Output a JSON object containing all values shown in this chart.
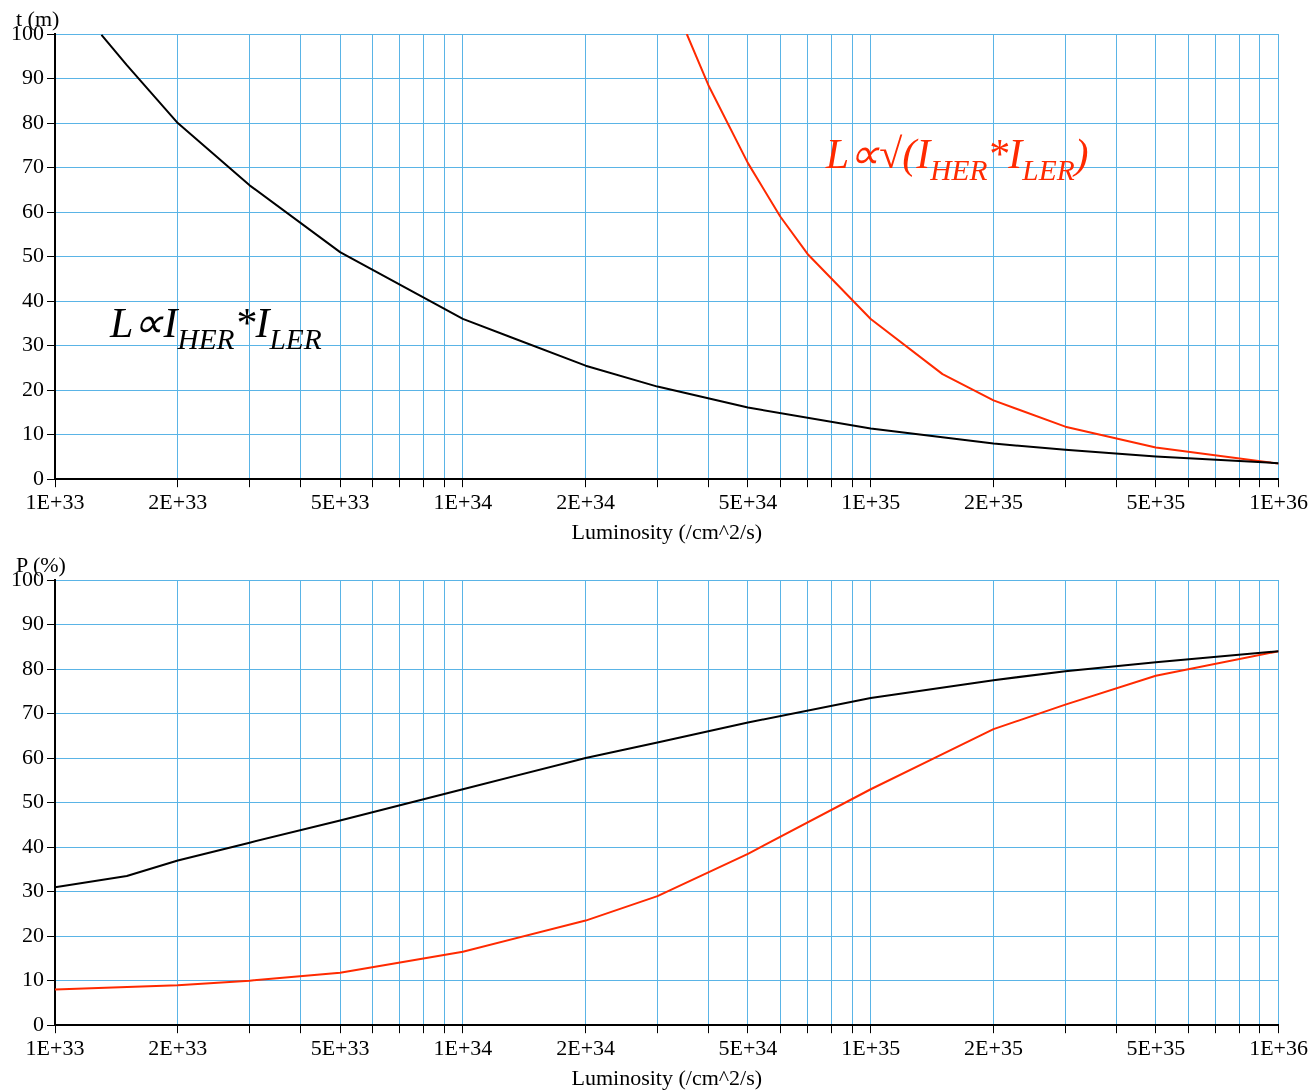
{
  "chart_data": [
    {
      "type": "line",
      "xlabel": "Luminosity (/cm^2/s)",
      "ylabel": "t (m)",
      "log": "x",
      "grid": true,
      "line_style": "solid",
      "xlim": [
        1e+33,
        1e+36
      ],
      "ylim": [
        0,
        100
      ],
      "xticks": [
        {
          "value": 1e+33,
          "label": "1E+33"
        },
        {
          "value": 2e+33,
          "label": "2E+33"
        },
        {
          "value": 3e+33,
          "label": null
        },
        {
          "value": 4e+33,
          "label": null
        },
        {
          "value": 5e+33,
          "label": "5E+33"
        },
        {
          "value": 6e+33,
          "label": null
        },
        {
          "value": 7e+33,
          "label": null
        },
        {
          "value": 8e+33,
          "label": null
        },
        {
          "value": 9e+33,
          "label": null
        },
        {
          "value": 1e+34,
          "label": "1E+34"
        },
        {
          "value": 2e+34,
          "label": "2E+34"
        },
        {
          "value": 3e+34,
          "label": null
        },
        {
          "value": 4e+34,
          "label": null
        },
        {
          "value": 5e+34,
          "label": "5E+34"
        },
        {
          "value": 6e+34,
          "label": null
        },
        {
          "value": 7e+34,
          "label": null
        },
        {
          "value": 8e+34,
          "label": null
        },
        {
          "value": 9e+34,
          "label": null
        },
        {
          "value": 1e+35,
          "label": "1E+35"
        },
        {
          "value": 2e+35,
          "label": "2E+35"
        },
        {
          "value": 3e+35,
          "label": null
        },
        {
          "value": 4e+35,
          "label": null
        },
        {
          "value": 5e+35,
          "label": "5E+35"
        },
        {
          "value": 6e+35,
          "label": null
        },
        {
          "value": 7e+35,
          "label": null
        },
        {
          "value": 8e+35,
          "label": null
        },
        {
          "value": 9e+35,
          "label": null
        },
        {
          "value": 1e+36,
          "label": "1E+36"
        }
      ],
      "yticks": [
        0,
        10,
        20,
        30,
        40,
        50,
        60,
        70,
        80,
        90,
        100
      ],
      "series": [
        {
          "name": "L∝I$_{HER}$*I$_{LER}$",
          "color": "#000000",
          "x": [
            1.3e+33,
            1.5e+33,
            2e+33,
            3e+33,
            5e+33,
            1e+34,
            2e+34,
            3e+34,
            5e+34,
            1e+35,
            2e+35,
            3e+35,
            5e+35,
            1e+36
          ],
          "values": [
            99.8,
            93,
            80,
            66,
            51,
            36,
            25.5,
            20.8,
            16.1,
            11.4,
            8,
            6.6,
            5.1,
            3.6
          ]
        },
        {
          "name": "L∝√(I$_{HER}$*I$_{LER}$)",
          "color": "#ff2a00",
          "x": [
            3.54e+34,
            4e+34,
            5e+34,
            6e+34,
            7e+34,
            1e+35,
            1.5e+35,
            2e+35,
            3e+35,
            5e+35,
            1e+36
          ],
          "values": [
            100,
            88.5,
            71,
            59,
            50.6,
            36,
            23.6,
            17.7,
            11.8,
            7.1,
            3.5
          ]
        }
      ]
    },
    {
      "type": "line",
      "xlabel": "Luminosity (/cm^2/s)",
      "ylabel": "P (%)",
      "log": "x",
      "grid": true,
      "line_style": "solid",
      "xlim": [
        1e+33,
        1e+36
      ],
      "ylim": [
        0,
        100
      ],
      "xticks": [
        {
          "value": 1e+33,
          "label": "1E+33"
        },
        {
          "value": 2e+33,
          "label": "2E+33"
        },
        {
          "value": 3e+33,
          "label": null
        },
        {
          "value": 4e+33,
          "label": null
        },
        {
          "value": 5e+33,
          "label": "5E+33"
        },
        {
          "value": 6e+33,
          "label": null
        },
        {
          "value": 7e+33,
          "label": null
        },
        {
          "value": 8e+33,
          "label": null
        },
        {
          "value": 9e+33,
          "label": null
        },
        {
          "value": 1e+34,
          "label": "1E+34"
        },
        {
          "value": 2e+34,
          "label": "2E+34"
        },
        {
          "value": 3e+34,
          "label": null
        },
        {
          "value": 4e+34,
          "label": null
        },
        {
          "value": 5e+34,
          "label": "5E+34"
        },
        {
          "value": 6e+34,
          "label": null
        },
        {
          "value": 7e+34,
          "label": null
        },
        {
          "value": 8e+34,
          "label": null
        },
        {
          "value": 9e+34,
          "label": null
        },
        {
          "value": 1e+35,
          "label": "1E+35"
        },
        {
          "value": 2e+35,
          "label": "2E+35"
        },
        {
          "value": 3e+35,
          "label": null
        },
        {
          "value": 4e+35,
          "label": null
        },
        {
          "value": 5e+35,
          "label": "5E+35"
        },
        {
          "value": 6e+35,
          "label": null
        },
        {
          "value": 7e+35,
          "label": null
        },
        {
          "value": 8e+35,
          "label": null
        },
        {
          "value": 9e+35,
          "label": null
        },
        {
          "value": 1e+36,
          "label": "1E+36"
        }
      ],
      "yticks": [
        0,
        10,
        20,
        30,
        40,
        50,
        60,
        70,
        80,
        90,
        100
      ],
      "series": [
        {
          "color": "#000000",
          "x": [
            1e+33,
            1.5e+33,
            2e+33,
            3e+33,
            5e+33,
            1e+34,
            2e+34,
            3e+34,
            5e+34,
            1e+35,
            2e+35,
            3e+35,
            5e+35,
            1e+36
          ],
          "values": [
            31,
            33.5,
            37,
            41,
            46,
            53,
            60,
            63.5,
            68,
            73.5,
            77.5,
            79.5,
            81.5,
            84
          ]
        },
        {
          "color": "#ff2a00",
          "x": [
            1e+33,
            2e+33,
            3e+33,
            5e+33,
            1e+34,
            2e+34,
            3e+34,
            5e+34,
            1e+35,
            2e+35,
            3e+35,
            5e+35,
            1e+36
          ],
          "values": [
            8,
            9,
            10,
            11.8,
            16.5,
            23.5,
            29,
            38.5,
            53,
            66.5,
            72,
            78.5,
            84
          ]
        }
      ]
    }
  ]
}
